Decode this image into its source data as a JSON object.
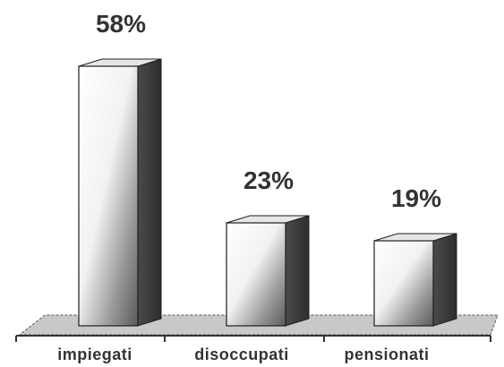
{
  "chart_data": {
    "type": "bar",
    "categories": [
      "impiegati",
      "disoccupati",
      "pensionati"
    ],
    "values": [
      58,
      23,
      19
    ],
    "value_labels": [
      "58%",
      "23%",
      "19%"
    ],
    "ylim": [
      0,
      100
    ],
    "grid": false,
    "legend": "none",
    "colors": {
      "bar_front_light": "#ffffff",
      "bar_front_dark": "#6a6a6a",
      "bar_side": "#3a3a3a",
      "bar_top": "#e6e6e6",
      "floor": "#c8c8c8",
      "axis": "#333333",
      "text": "#333333"
    }
  }
}
